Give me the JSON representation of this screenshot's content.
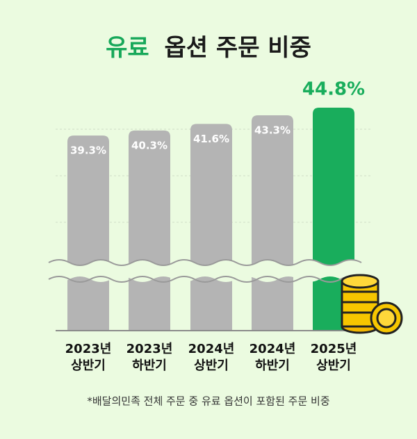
{
  "chart_data": {
    "type": "bar",
    "title": [
      {
        "text": "유료",
        "color": "#17a85a"
      },
      {
        "text": "옵션 주문 비중",
        "color": "#1a1a1a"
      }
    ],
    "categories": [
      [
        "2023년",
        "상반기"
      ],
      [
        "2023년",
        "하반기"
      ],
      [
        "2024년",
        "상반기"
      ],
      [
        "2024년",
        "하반기"
      ],
      [
        "2025년",
        "상반기"
      ]
    ],
    "values": [
      39.3,
      40.3,
      41.6,
      43.3,
      44.8
    ],
    "value_labels": [
      "39.3%",
      "40.3%",
      "41.6%",
      "43.3%",
      "44.8%"
    ],
    "colors": [
      "#b4b4b4",
      "#b4b4b4",
      "#b4b4b4",
      "#b4b4b4",
      "#19ad5c"
    ],
    "footnote": "*배달의민족 전체 주문 중 유료 옵션이 포함된 주문 비중"
  }
}
